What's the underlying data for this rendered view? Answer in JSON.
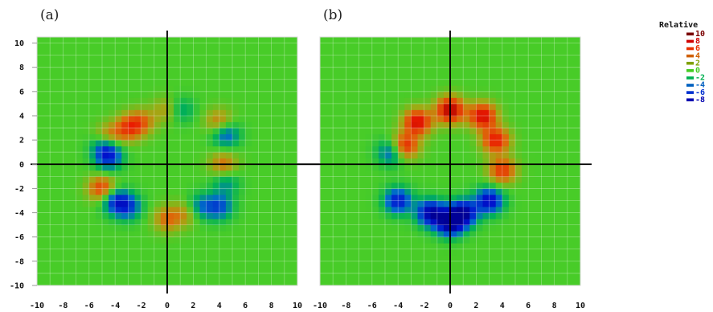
{
  "chart_data": [
    {
      "type": "heatmap",
      "panel_label": "(a)",
      "xlim": [
        -10,
        10
      ],
      "ylim": [
        -10,
        10.5
      ],
      "x_ticks": [
        "-10",
        "-8",
        "-6",
        "-4",
        "-2",
        "0",
        "2",
        "4",
        "6",
        "8",
        "10"
      ],
      "y_ticks": [
        "10",
        "8",
        "6",
        "4",
        "2",
        "0",
        "-2",
        "-4",
        "-6",
        "-8",
        "-10"
      ],
      "grid": true,
      "background_value": 0,
      "features": [
        {
          "x": -3.0,
          "y": 3.0,
          "value": 5
        },
        {
          "x": -4.5,
          "y": 2.2,
          "value": 5
        },
        {
          "x": -2.0,
          "y": 3.5,
          "value": 4
        },
        {
          "x": 0.0,
          "y": 4.5,
          "value": 3
        },
        {
          "x": 4.0,
          "y": 3.5,
          "value": 4
        },
        {
          "x": 4.5,
          "y": 2.5,
          "value": -5
        },
        {
          "x": 4.3,
          "y": 0.0,
          "value": 4
        },
        {
          "x": 4.5,
          "y": -1.5,
          "value": -3
        },
        {
          "x": -4.7,
          "y": 1.5,
          "value": -6
        },
        {
          "x": -4.5,
          "y": 0.5,
          "value": -5
        },
        {
          "x": -5.0,
          "y": -2.0,
          "value": 6
        },
        {
          "x": -4.0,
          "y": -3.0,
          "value": -6
        },
        {
          "x": -3.0,
          "y": -3.5,
          "value": -5
        },
        {
          "x": 0.0,
          "y": -4.5,
          "value": 4
        },
        {
          "x": 1.5,
          "y": -4.0,
          "value": 3
        },
        {
          "x": 2.5,
          "y": -3.5,
          "value": -4
        },
        {
          "x": 4.0,
          "y": -3.5,
          "value": -5
        },
        {
          "x": 1.0,
          "y": 4.5,
          "value": -3
        }
      ]
    },
    {
      "type": "heatmap",
      "panel_label": "(b)",
      "xlim": [
        -10,
        10
      ],
      "ylim": [
        -10,
        10.5
      ],
      "x_ticks": [
        "-10",
        "-8",
        "-6",
        "-4",
        "-2",
        "0",
        "2",
        "4",
        "6",
        "8",
        "10"
      ],
      "y_ticks": [],
      "grid": true,
      "background_value": 0,
      "features": [
        {
          "x": -2.5,
          "y": 3.5,
          "value": 8
        },
        {
          "x": 0.0,
          "y": 4.5,
          "value": 9
        },
        {
          "x": 2.5,
          "y": 4.0,
          "value": 8
        },
        {
          "x": -3.5,
          "y": 1.5,
          "value": 7
        },
        {
          "x": 3.5,
          "y": 2.0,
          "value": 7
        },
        {
          "x": 4.0,
          "y": -0.5,
          "value": 6
        },
        {
          "x": -4.5,
          "y": 1.0,
          "value": -5
        },
        {
          "x": -4.0,
          "y": -3.0,
          "value": -7
        },
        {
          "x": -1.5,
          "y": -4.0,
          "value": -9
        },
        {
          "x": 1.0,
          "y": -4.0,
          "value": -9
        },
        {
          "x": 3.0,
          "y": -3.0,
          "value": -8
        },
        {
          "x": 0.0,
          "y": -4.8,
          "value": -10
        }
      ]
    }
  ],
  "legend": {
    "title": "Relative",
    "entries": [
      {
        "label": "10",
        "color": "#7a0000"
      },
      {
        "label": "8",
        "color": "#d00000"
      },
      {
        "label": "6",
        "color": "#e83000"
      },
      {
        "label": "4",
        "color": "#d06000"
      },
      {
        "label": "2",
        "color": "#7fa000"
      },
      {
        "label": "0",
        "color": "#44cc22"
      },
      {
        "label": "-2",
        "color": "#00b050"
      },
      {
        "label": "-4",
        "color": "#0060c0"
      },
      {
        "label": "-6",
        "color": "#0030d0"
      },
      {
        "label": "-8",
        "color": "#0000b0"
      }
    ]
  }
}
